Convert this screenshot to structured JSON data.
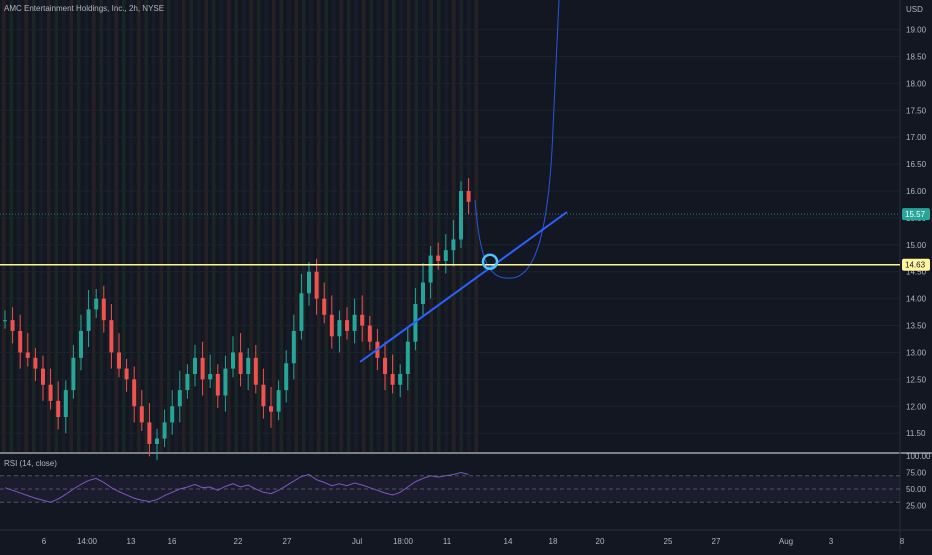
{
  "header": {
    "symbol": "AMC Entertainment Holdings, Inc., 2h, NYSE",
    "currency": "USD"
  },
  "rsi_panel": {
    "label": "RSI (14, close)"
  },
  "colors": {
    "background": "#131722",
    "grid": "#1e222d",
    "up": "#26a69a",
    "down": "#ef5350",
    "horizontal_line": "#fff59d",
    "trendline": "#2962ff",
    "rsi": "#7e57c2",
    "last_price_badge": "#26a69a"
  },
  "chart_data": {
    "type": "candlestick",
    "y_axis": {
      "ticks": [
        "19.00",
        "18.50",
        "18.00",
        "17.50",
        "17.00",
        "16.50",
        "16.00",
        "15.50",
        "15.00",
        "14.50",
        "14.00",
        "13.50",
        "13.00",
        "12.50",
        "12.00",
        "11.50"
      ],
      "range": [
        11.15,
        19.55
      ]
    },
    "x_axis": {
      "ticks": [
        "6",
        "14:00",
        "13",
        "16",
        "22",
        "27",
        "Jul",
        "18:00",
        "11",
        "14",
        "18",
        "20",
        "25",
        "27",
        "Aug",
        "3",
        "8"
      ]
    },
    "last_price": "15.57",
    "horizontal_level": "14.63",
    "price_start": 13.6,
    "candle_path": [
      13.6,
      13.4,
      13.0,
      12.9,
      12.7,
      12.4,
      12.1,
      11.8,
      12.3,
      12.9,
      13.4,
      13.8,
      14.0,
      13.6,
      13.0,
      12.7,
      12.5,
      12.0,
      11.7,
      11.3,
      11.4,
      11.7,
      12.0,
      12.3,
      12.6,
      12.9,
      12.5,
      12.6,
      12.2,
      12.7,
      13.0,
      12.6,
      12.9,
      12.4,
      12.0,
      11.9,
      12.3,
      12.8,
      13.4,
      14.1,
      14.5,
      14.0,
      13.7,
      13.3,
      13.6,
      13.4,
      13.7,
      13.5,
      13.2,
      12.9,
      12.6,
      12.4,
      12.6,
      13.2,
      13.9,
      14.3,
      14.8,
      14.7,
      14.9,
      15.1,
      16.0,
      15.8
    ],
    "annotations": {
      "trendline": {
        "from": [
          "5-Jul",
          12.9
        ],
        "to": [
          "17-Jul",
          15.7
        ]
      },
      "projection_curve": "curve dipping to about 14.4 then rising steeply above 19.5",
      "circle_marker": {
        "price": 14.6
      }
    },
    "rsi": {
      "range": [
        0,
        100
      ],
      "levels": [
        70,
        50,
        30
      ],
      "ticks": [
        "100.00",
        "75.00",
        "50.00",
        "25.00"
      ],
      "values": [
        52,
        48,
        44,
        40,
        36,
        33,
        30,
        35,
        42,
        50,
        57,
        63,
        66,
        60,
        52,
        46,
        41,
        36,
        33,
        31,
        34,
        40,
        45,
        50,
        53,
        57,
        52,
        53,
        48,
        54,
        58,
        53,
        56,
        50,
        45,
        43,
        48,
        55,
        62,
        69,
        72,
        64,
        60,
        55,
        58,
        55,
        59,
        56,
        52,
        48,
        44,
        41,
        45,
        53,
        61,
        66,
        70,
        68,
        70,
        72,
        75,
        72
      ]
    }
  }
}
